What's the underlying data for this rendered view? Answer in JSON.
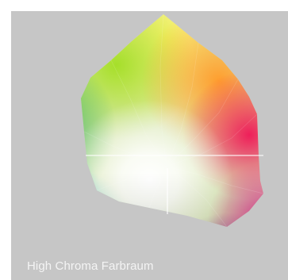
{
  "caption": "High Chroma Farbraum",
  "colors": {
    "background": "#ffffff",
    "panel": "#c6c6c6",
    "caption_text": "#f4f4f4"
  }
}
